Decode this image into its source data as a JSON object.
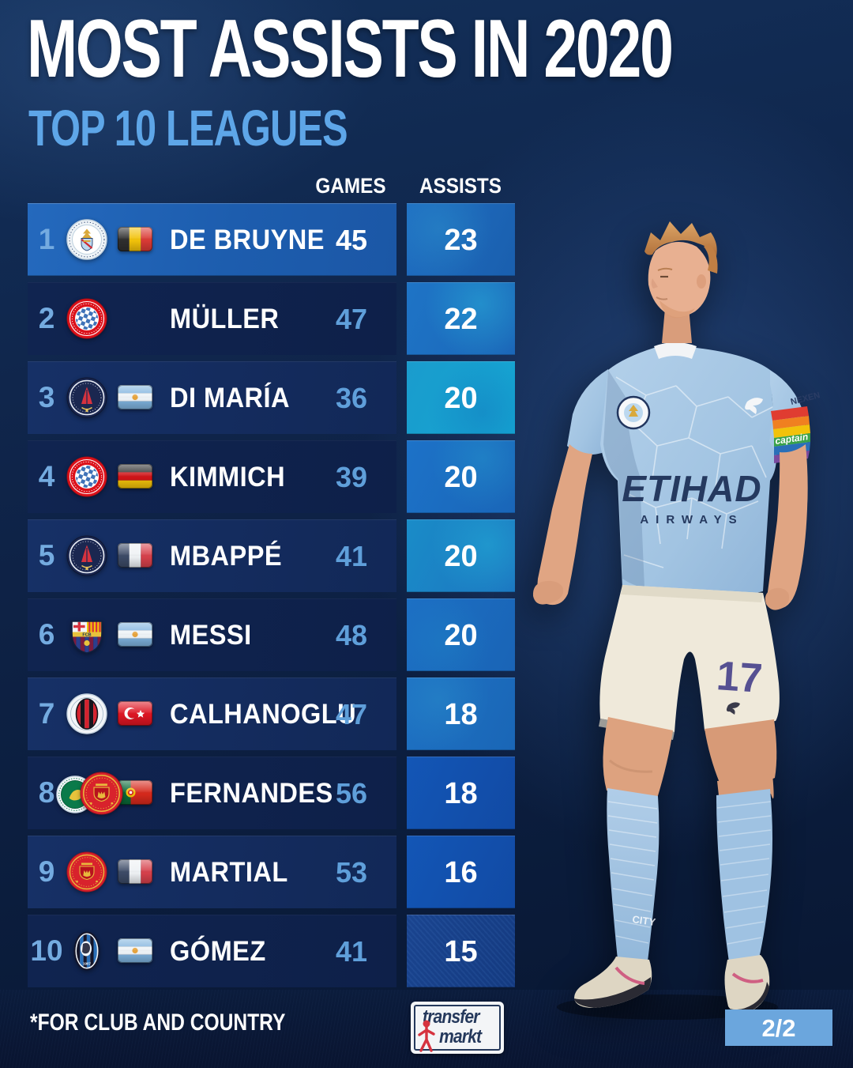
{
  "header": {
    "title": "MOST ASSISTS IN 2020",
    "subtitle": "TOP 10 LEAGUES"
  },
  "columns": {
    "games": "GAMES",
    "assists": "ASSISTS"
  },
  "rows": [
    {
      "rank": "1",
      "clubs": [
        "manchester-city"
      ],
      "flag": "belgium",
      "name": "DE BRUYNE",
      "games": "45",
      "assists": "23"
    },
    {
      "rank": "2",
      "clubs": [
        "bayern-munich"
      ],
      "flag": null,
      "name": "MÜLLER",
      "games": "47",
      "assists": "22"
    },
    {
      "rank": "3",
      "clubs": [
        "psg"
      ],
      "flag": "argentina",
      "name": "DI MARÍA",
      "games": "36",
      "assists": "20"
    },
    {
      "rank": "4",
      "clubs": [
        "bayern-munich"
      ],
      "flag": "germany",
      "name": "KIMMICH",
      "games": "39",
      "assists": "20"
    },
    {
      "rank": "5",
      "clubs": [
        "psg"
      ],
      "flag": "france",
      "name": "MBAPPÉ",
      "games": "41",
      "assists": "20"
    },
    {
      "rank": "6",
      "clubs": [
        "barcelona"
      ],
      "flag": "argentina",
      "name": "MESSI",
      "games": "48",
      "assists": "20"
    },
    {
      "rank": "7",
      "clubs": [
        "ac-milan"
      ],
      "flag": "turkey",
      "name": "CALHANOGLU",
      "games": "47",
      "assists": "18"
    },
    {
      "rank": "8",
      "clubs": [
        "sporting-cp",
        "manchester-united"
      ],
      "flag": "portugal",
      "name": "FERNANDES",
      "games": "56",
      "assists": "18"
    },
    {
      "rank": "9",
      "clubs": [
        "manchester-united"
      ],
      "flag": "france",
      "name": "MARTIAL",
      "games": "53",
      "assists": "16"
    },
    {
      "rank": "10",
      "clubs": [
        "atalanta"
      ],
      "flag": "argentina",
      "name": "GÓMEZ",
      "games": "41",
      "assists": "15"
    }
  ],
  "player_image": {
    "shirt_sponsor_line1": "ETIHAD",
    "shirt_sponsor_line2": "AIRWAYS",
    "sleeve_sponsor": "NEXEN",
    "armband_text": "captain",
    "shorts_number": "17",
    "sock_text": "CITY"
  },
  "footer": {
    "note": "*FOR CLUB AND COUNTRY",
    "logo_line1": "transfer",
    "logo_line2": "markt",
    "page_indicator": "2/2"
  },
  "colors": {
    "background_navy": "#0d2348",
    "title_white": "#ffffff",
    "subtitle_blue": "#5ea6e8",
    "row_highlight_blue": "#1f63b5",
    "row_panel_navy": "#152e63",
    "rank_light_blue": "#74abe0",
    "games_light_blue": "#5f9fda",
    "assist_blue": "#1c6fc2",
    "assist_cyan": "#18a0cc",
    "assist_royal": "#1254b2",
    "page_badge_blue": "#6ba6dd"
  }
}
